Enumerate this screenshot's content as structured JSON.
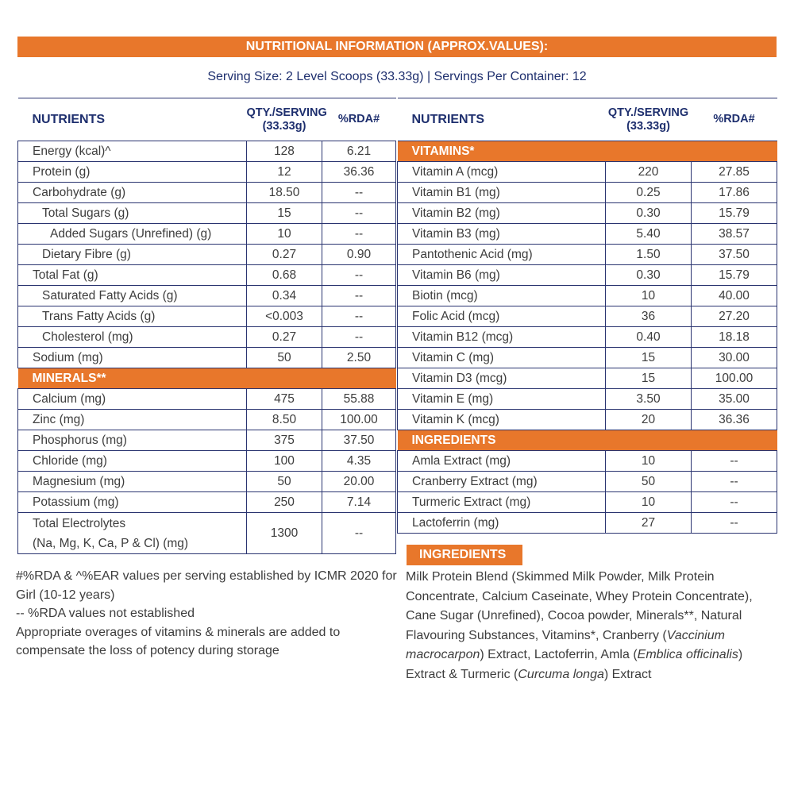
{
  "title": "NUTRITIONAL INFORMATION (APPROX.VALUES):",
  "serving": "Serving Size: 2 Level Scoops (33.33g) | Servings Per Container: 12",
  "headers": {
    "nutrients": "NUTRIENTS",
    "qty_line1": "QTY./SERVING",
    "qty_line2": "(33.33g)",
    "rda": "%RDA#"
  },
  "left_rows": [
    {
      "name": "Energy (kcal)^",
      "qty": "128",
      "rda": "6.21"
    },
    {
      "name": "Protein (g)",
      "qty": "12",
      "rda": "36.36"
    },
    {
      "name": "Carbohydrate (g)",
      "qty": "18.50",
      "rda": "--"
    },
    {
      "name": "Total Sugars (g)",
      "qty": "15",
      "rda": "--",
      "indent": 1
    },
    {
      "name": "Added Sugars (Unrefined) (g)",
      "qty": "10",
      "rda": "--",
      "indent": 2
    },
    {
      "name": "Dietary Fibre (g)",
      "qty": "0.27",
      "rda": "0.90",
      "indent": 1
    },
    {
      "name": "Total Fat (g)",
      "qty": "0.68",
      "rda": "--"
    },
    {
      "name": "Saturated Fatty Acids (g)",
      "qty": "0.34",
      "rda": "--",
      "indent": 1
    },
    {
      "name": "Trans Fatty Acids (g)",
      "qty": "<0.003",
      "rda": "--",
      "indent": 1
    },
    {
      "name": "Cholesterol (mg)",
      "qty": "0.27",
      "rda": "--",
      "indent": 1
    },
    {
      "name": "Sodium (mg)",
      "qty": "50",
      "rda": "2.50"
    },
    {
      "section": "MINERALS**"
    },
    {
      "name": "Calcium (mg)",
      "qty": "475",
      "rda": "55.88"
    },
    {
      "name": "Zinc (mg)",
      "qty": "8.50",
      "rda": "100.00"
    },
    {
      "name": "Phosphorus (mg)",
      "qty": "375",
      "rda": "37.50"
    },
    {
      "name": "Chloride (mg)",
      "qty": "100",
      "rda": "4.35"
    },
    {
      "name": "Magnesium (mg)",
      "qty": "50",
      "rda": "20.00"
    },
    {
      "name": "Potassium (mg)",
      "qty": "250",
      "rda": "7.14"
    },
    {
      "name": "Total Electrolytes",
      "name2": "(Na, Mg, K, Ca, P & Cl) (mg)",
      "qty": "1300",
      "rda": "--"
    }
  ],
  "right_rows": [
    {
      "section": "VITAMINS*"
    },
    {
      "name": "Vitamin A (mcg)",
      "qty": "220",
      "rda": "27.85"
    },
    {
      "name": "Vitamin B1 (mg)",
      "qty": "0.25",
      "rda": "17.86"
    },
    {
      "name": "Vitamin B2 (mg)",
      "qty": "0.30",
      "rda": "15.79"
    },
    {
      "name": "Vitamin B3 (mg)",
      "qty": "5.40",
      "rda": "38.57"
    },
    {
      "name": "Pantothenic Acid (mg)",
      "qty": "1.50",
      "rda": "37.50"
    },
    {
      "name": "Vitamin B6 (mg)",
      "qty": "0.30",
      "rda": "15.79"
    },
    {
      "name": "Biotin (mcg)",
      "qty": "10",
      "rda": "40.00"
    },
    {
      "name": "Folic Acid (mcg)",
      "qty": "36",
      "rda": "27.20"
    },
    {
      "name": "Vitamin B12 (mcg)",
      "qty": "0.40",
      "rda": "18.18"
    },
    {
      "name": "Vitamin C (mg)",
      "qty": "15",
      "rda": "30.00"
    },
    {
      "name": "Vitamin D3 (mcg)",
      "qty": "15",
      "rda": "100.00"
    },
    {
      "name": "Vitamin E (mg)",
      "qty": "3.50",
      "rda": "35.00"
    },
    {
      "name": "Vitamin K (mcg)",
      "qty": "20",
      "rda": "36.36"
    },
    {
      "section": "INGREDIENTS"
    },
    {
      "name": "Amla Extract (mg)",
      "qty": "10",
      "rda": "--"
    },
    {
      "name": "Cranberry Extract (mg)",
      "qty": "50",
      "rda": "--"
    },
    {
      "name": "Turmeric Extract (mg)",
      "qty": "10",
      "rda": "--"
    },
    {
      "name": "Lactoferrin (mg)",
      "qty": "27",
      "rda": "--"
    }
  ],
  "ingredients_label": "INGREDIENTS",
  "ingredients_parts": [
    {
      "t": "Milk Protein Blend (Skimmed Milk Powder, Milk Protein Concentrate, Calcium Caseinate, Whey Protein Concentrate), Cane Sugar (Unrefined), Cocoa powder, Minerals**, Natural Flavouring Substances, Vitamins*, Cranberry ("
    },
    {
      "t": "Vaccinium macrocarpon",
      "i": true
    },
    {
      "t": ") Extract, Lactoferrin, Amla ("
    },
    {
      "t": "Emblica officinalis",
      "i": true
    },
    {
      "t": ") Extract & Turmeric ("
    },
    {
      "t": "Curcuma longa",
      "i": true
    },
    {
      "t": ") Extract"
    }
  ],
  "notes": [
    "#%RDA & ^%EAR values per serving established by ICMR 2020 for Girl (10-12 years)",
    "-- %RDA values not established",
    "Appropriate overages of vitamins & minerals are added to compensate the loss of potency during storage"
  ],
  "colors": {
    "accent": "#e8772b",
    "navy": "#1e2f6e"
  }
}
